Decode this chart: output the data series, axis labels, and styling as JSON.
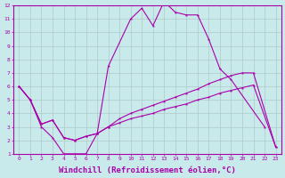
{
  "background_color": "#c8eaea",
  "grid_color": "#b0c8c8",
  "line_color": "#aa00aa",
  "xlabel": "Windchill (Refroidissement éolien,°C)",
  "xlabel_fontsize": 6.5,
  "xlim": [
    -0.5,
    23.5
  ],
  "ylim": [
    1,
    12
  ],
  "line1_x": [
    0,
    1,
    2,
    3,
    4,
    5,
    6,
    7,
    8,
    10,
    11,
    12,
    13,
    14,
    15,
    16,
    17,
    18,
    19,
    22
  ],
  "line1_y": [
    6.0,
    5.0,
    3.0,
    2.2,
    1.0,
    1.0,
    1.0,
    2.5,
    7.5,
    11.0,
    11.8,
    10.5,
    12.3,
    11.5,
    11.3,
    11.3,
    9.5,
    7.3,
    6.5,
    3.0
  ],
  "line2_x": [
    0,
    1,
    2,
    3,
    4,
    5,
    6,
    7,
    8,
    9,
    10,
    11,
    12,
    13,
    14,
    15,
    16,
    17,
    18,
    19,
    20,
    21,
    23
  ],
  "line2_y": [
    6.0,
    5.0,
    3.2,
    3.5,
    2.2,
    2.0,
    2.3,
    2.5,
    3.0,
    3.3,
    3.6,
    3.8,
    4.0,
    4.3,
    4.5,
    4.7,
    5.0,
    5.2,
    5.5,
    5.7,
    5.9,
    6.1,
    1.5
  ],
  "line3_x": [
    0,
    1,
    2,
    3,
    4,
    5,
    6,
    7,
    8,
    9,
    10,
    11,
    12,
    13,
    14,
    15,
    16,
    17,
    18,
    19,
    20,
    21,
    23
  ],
  "line3_y": [
    6.0,
    5.0,
    3.2,
    3.5,
    2.2,
    2.0,
    2.3,
    2.5,
    3.0,
    3.6,
    4.0,
    4.3,
    4.6,
    4.9,
    5.2,
    5.5,
    5.8,
    6.2,
    6.5,
    6.8,
    7.0,
    7.0,
    1.5
  ]
}
